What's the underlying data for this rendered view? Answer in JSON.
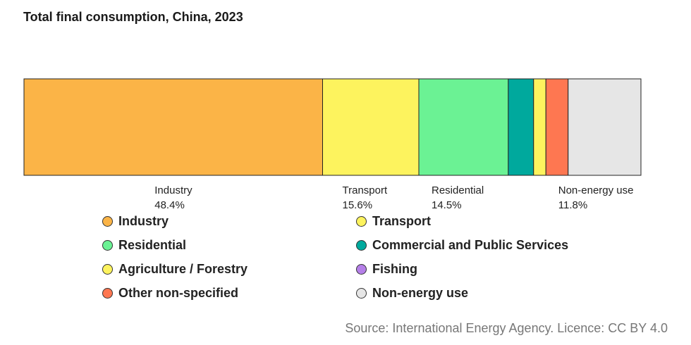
{
  "chart_data": {
    "type": "bar",
    "orientation": "horizontal-stacked-100",
    "title": "Total final consumption, China, 2023",
    "unit": "percent",
    "series": [
      {
        "name": "Industry",
        "value": 48.4,
        "color": "#fbb447",
        "show_label": true,
        "label_value": "48.4%"
      },
      {
        "name": "Transport",
        "value": 15.6,
        "color": "#fdf35e",
        "show_label": true,
        "label_value": "15.6%"
      },
      {
        "name": "Residential",
        "value": 14.5,
        "color": "#6bf294",
        "show_label": true,
        "label_value": "14.5%"
      },
      {
        "name": "Commercial and Public Services",
        "value": 4.1,
        "color": "#00a99d",
        "show_label": false,
        "label_value": ""
      },
      {
        "name": "Agriculture / Forestry",
        "value": 2.0,
        "color": "#fdf35e",
        "show_label": false,
        "label_value": ""
      },
      {
        "name": "Fishing",
        "value": 0.0,
        "color": "#b57fe8",
        "show_label": false,
        "label_value": ""
      },
      {
        "name": "Other non-specified",
        "value": 3.6,
        "color": "#fe7751",
        "show_label": false,
        "label_value": ""
      },
      {
        "name": "Non-energy use",
        "value": 11.8,
        "color": "#e6e6e6",
        "show_label": true,
        "label_value": "11.8%"
      }
    ],
    "legend_order": [
      "Industry",
      "Transport",
      "Residential",
      "Commercial and Public Services",
      "Agriculture / Forestry",
      "Fishing",
      "Other non-specified",
      "Non-energy use"
    ],
    "legend_placement": "bottom"
  },
  "source": "Source: International Energy Agency. Licence: CC BY 4.0"
}
